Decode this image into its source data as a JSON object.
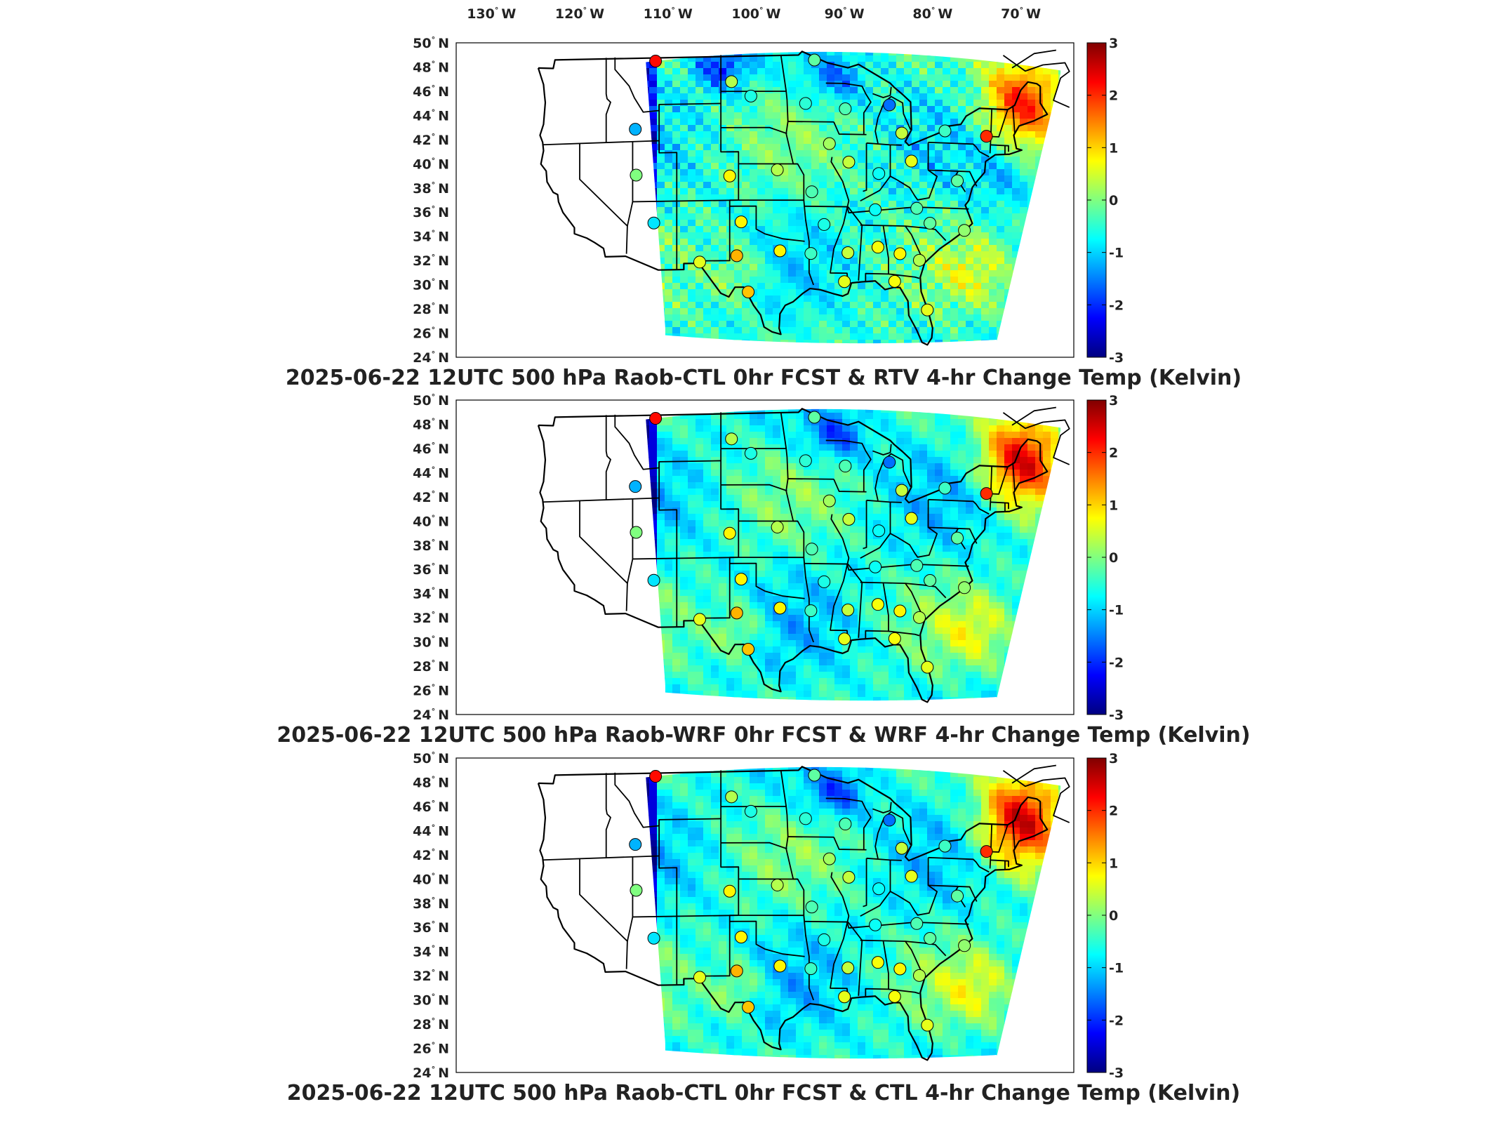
{
  "lon_labels": [
    "130",
    "120",
    "110",
    "100",
    "90",
    "80",
    "70"
  ],
  "lon_suffix": "W",
  "lat_labels": [
    "50",
    "48",
    "46",
    "44",
    "42",
    "40",
    "38",
    "36",
    "34",
    "32",
    "30",
    "28",
    "26",
    "24"
  ],
  "lat_suffix": "N",
  "degree_symbol": "°",
  "colorbar": {
    "ticks": [
      "3",
      "2",
      "1",
      "0",
      "-1",
      "-2",
      "-3"
    ],
    "range": [
      -3,
      3
    ],
    "colormap": [
      "#000080",
      "#0000ff",
      "#0080ff",
      "#00ffff",
      "#80ff80",
      "#ffff00",
      "#ff8000",
      "#ff0000",
      "#800000"
    ]
  },
  "panels": [
    {
      "title": "2025-06-22 12UTC 500 hPa Raob-CTL 0hr FCST & RTV 4-hr Change Temp (Kelvin)",
      "variant": "rtv"
    },
    {
      "title": "2025-06-22 12UTC 500 hPa Raob-WRF 0hr FCST & WRF 4-hr Change Temp (Kelvin)",
      "variant": "wrf"
    },
    {
      "title": "2025-06-22 12UTC 500 hPa Raob-CTL 0hr FCST & CTL 4-hr Change Temp (Kelvin)",
      "variant": "ctl"
    }
  ],
  "raob_stations": [
    {
      "lon": -111.4,
      "lat": 48.6,
      "value": 2.2
    },
    {
      "lon": -102.8,
      "lat": 46.8,
      "value": 0.3
    },
    {
      "lon": -100.6,
      "lat": 45.6,
      "value": -0.6
    },
    {
      "lon": -93.4,
      "lat": 48.6,
      "value": -0.2
    },
    {
      "lon": -94.4,
      "lat": 45.0,
      "value": -0.5
    },
    {
      "lon": -89.9,
      "lat": 44.6,
      "value": -0.3
    },
    {
      "lon": -84.9,
      "lat": 45.0,
      "value": -1.6
    },
    {
      "lon": -83.5,
      "lat": 42.7,
      "value": 0.4
    },
    {
      "lon": -78.6,
      "lat": 43.0,
      "value": -0.4
    },
    {
      "lon": -73.9,
      "lat": 42.7,
      "value": 2.0
    },
    {
      "lon": -113.7,
      "lat": 43.0,
      "value": -1.2
    },
    {
      "lon": -91.7,
      "lat": 41.7,
      "value": 0.2
    },
    {
      "lon": -89.5,
      "lat": 40.2,
      "value": 0.4
    },
    {
      "lon": -86.1,
      "lat": 39.3,
      "value": -0.7
    },
    {
      "lon": -82.4,
      "lat": 40.4,
      "value": 0.6
    },
    {
      "lon": -113.6,
      "lat": 39.2,
      "value": 0.0
    },
    {
      "lon": -103.0,
      "lat": 39.0,
      "value": 0.8
    },
    {
      "lon": -97.6,
      "lat": 39.5,
      "value": 0.3
    },
    {
      "lon": -93.7,
      "lat": 37.7,
      "value": -0.3
    },
    {
      "lon": -86.5,
      "lat": 36.3,
      "value": -0.7
    },
    {
      "lon": -81.8,
      "lat": 36.5,
      "value": -0.3
    },
    {
      "lon": -77.2,
      "lat": 38.9,
      "value": -0.2
    },
    {
      "lon": -111.6,
      "lat": 35.2,
      "value": -0.9
    },
    {
      "lon": -101.7,
      "lat": 35.2,
      "value": 0.8
    },
    {
      "lon": -92.3,
      "lat": 35.0,
      "value": -0.6
    },
    {
      "lon": -80.3,
      "lat": 35.3,
      "value": -0.2
    },
    {
      "lon": -76.4,
      "lat": 34.8,
      "value": 0.1
    },
    {
      "lon": -106.4,
      "lat": 31.9,
      "value": 0.6
    },
    {
      "lon": -102.2,
      "lat": 32.4,
      "value": 1.2
    },
    {
      "lon": -97.3,
      "lat": 32.8,
      "value": 0.8
    },
    {
      "lon": -93.8,
      "lat": 32.6,
      "value": -0.4
    },
    {
      "lon": -89.6,
      "lat": 32.7,
      "value": 0.4
    },
    {
      "lon": -86.2,
      "lat": 33.2,
      "value": 0.7
    },
    {
      "lon": -83.7,
      "lat": 32.7,
      "value": 0.8
    },
    {
      "lon": -81.5,
      "lat": 32.2,
      "value": 0.3
    },
    {
      "lon": -100.9,
      "lat": 29.4,
      "value": 1.1
    },
    {
      "lon": -90.0,
      "lat": 30.3,
      "value": 0.6
    },
    {
      "lon": -84.3,
      "lat": 30.4,
      "value": 0.7
    },
    {
      "lon": -80.6,
      "lat": 28.1,
      "value": 0.6
    }
  ]
}
